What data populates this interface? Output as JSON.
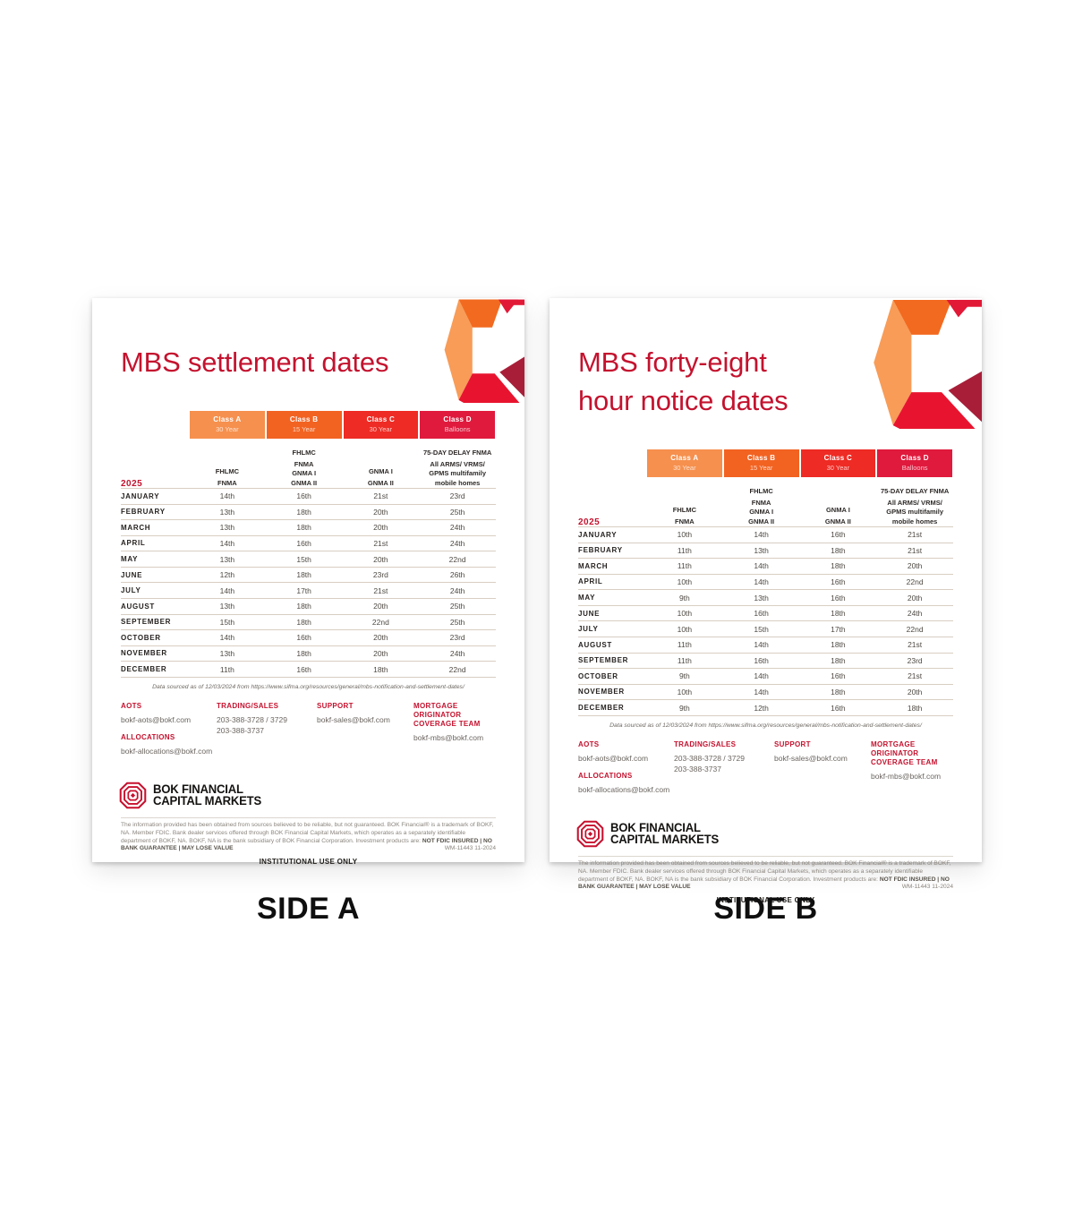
{
  "labels": [
    "SIDE A",
    "SIDE B"
  ],
  "colors": {
    "title_red": "#C4122E",
    "rule_red": "#B5122C",
    "class_a": "#F6904E",
    "class_b": "#F26322",
    "class_c": "#EE2B24",
    "class_d": "#E01A3D",
    "ribbon_light_orange": "#F89C58",
    "ribbon_dark_orange": "#F26A1F",
    "ribbon_red": "#E8142F",
    "ribbon_dark_red": "#A81E38",
    "logo_red": "#C8102E"
  },
  "pages": [
    {
      "id": "side-a",
      "title_lines": [
        "MBS settlement dates"
      ],
      "year": "2025",
      "columns": [
        {
          "label": "Class A",
          "sublabel": "30 Year",
          "color": "#F6904E",
          "entities": [
            "FHLMC",
            "FNMA"
          ]
        },
        {
          "label": "Class B",
          "sublabel": "15 Year",
          "color": "#F26322",
          "entities": [
            "FHLMC",
            "FNMA",
            "GNMA I",
            "GNMA II"
          ]
        },
        {
          "label": "Class C",
          "sublabel": "30 Year",
          "color": "#EE2B24",
          "entities": [
            "GNMA I",
            "GNMA II"
          ]
        },
        {
          "label": "Class D",
          "sublabel": "Balloons",
          "color": "#E01A3D",
          "entities": [
            "75-DAY DELAY FNMA",
            "All ARMS/ VRMS/",
            "GPMS multifamily",
            "mobile homes"
          ]
        }
      ],
      "rows": [
        {
          "month": "JANUARY",
          "dates": [
            "14th",
            "16th",
            "21st",
            "23rd"
          ]
        },
        {
          "month": "FEBRUARY",
          "dates": [
            "13th",
            "18th",
            "20th",
            "25th"
          ]
        },
        {
          "month": "MARCH",
          "dates": [
            "13th",
            "18th",
            "20th",
            "24th"
          ]
        },
        {
          "month": "APRIL",
          "dates": [
            "14th",
            "16th",
            "21st",
            "24th"
          ]
        },
        {
          "month": "MAY",
          "dates": [
            "13th",
            "15th",
            "20th",
            "22nd"
          ]
        },
        {
          "month": "JUNE",
          "dates": [
            "12th",
            "18th",
            "23rd",
            "26th"
          ]
        },
        {
          "month": "JULY",
          "dates": [
            "14th",
            "17th",
            "21st",
            "24th"
          ]
        },
        {
          "month": "AUGUST",
          "dates": [
            "13th",
            "18th",
            "20th",
            "25th"
          ]
        },
        {
          "month": "SEPTEMBER",
          "dates": [
            "15th",
            "18th",
            "22nd",
            "25th"
          ]
        },
        {
          "month": "OCTOBER",
          "dates": [
            "14th",
            "16th",
            "20th",
            "23rd"
          ]
        },
        {
          "month": "NOVEMBER",
          "dates": [
            "13th",
            "18th",
            "20th",
            "24th"
          ]
        },
        {
          "month": "DECEMBER",
          "dates": [
            "11th",
            "16th",
            "18th",
            "22nd"
          ]
        }
      ],
      "source_note": "Data sourced as of 12/03/2024 from https://www.sifma.org/resources/general/mbs-notification-and-settlement-dates/",
      "contacts": [
        [
          {
            "heading": "AOTS",
            "lines": [
              "bokf-aots@bokf.com"
            ]
          },
          {
            "heading": "ALLOCATIONS",
            "lines": [
              "bokf-allocations@bokf.com"
            ]
          }
        ],
        [
          {
            "heading": "TRADING/SALES",
            "lines": [
              "203-388-3728 / 3729",
              "203-388-3737"
            ]
          }
        ],
        [
          {
            "heading": "SUPPORT",
            "lines": [
              "bokf-sales@bokf.com"
            ]
          }
        ],
        [
          {
            "heading": "MORTGAGE ORIGINATOR COVERAGE TEAM",
            "lines": [
              "bokf-mbs@bokf.com"
            ]
          }
        ]
      ],
      "logo": {
        "line1": "BOK FINANCIAL",
        "line2": "CAPITAL MARKETS"
      },
      "disclaimer": {
        "text": "The information provided has been obtained from sources believed to be reliable, but not guaranteed. BOK Financial® is a trademark of BOKF, NA. Member FDIC. Bank dealer services offered through BOK Financial Capital Markets, which operates as a separately identifiable department of BOKF, NA. BOKF, NA is the bank subsidiary of BOK Financial Corporation. Investment products are: ",
        "bold": "NOT FDIC INSURED | NO BANK GUARANTEE | MAY LOSE VALUE",
        "code": "WM-11443 11-2024"
      },
      "institutional": "INSTITUTIONAL USE ONLY"
    },
    {
      "id": "side-b",
      "title_lines": [
        "MBS forty-eight",
        "hour notice dates"
      ],
      "year": "2025",
      "columns": [
        {
          "label": "Class A",
          "sublabel": "30 Year",
          "color": "#F6904E",
          "entities": [
            "FHLMC",
            "FNMA"
          ]
        },
        {
          "label": "Class B",
          "sublabel": "15 Year",
          "color": "#F26322",
          "entities": [
            "FHLMC",
            "FNMA",
            "GNMA I",
            "GNMA II"
          ]
        },
        {
          "label": "Class C",
          "sublabel": "30 Year",
          "color": "#EE2B24",
          "entities": [
            "GNMA I",
            "GNMA II"
          ]
        },
        {
          "label": "Class D",
          "sublabel": "Balloons",
          "color": "#E01A3D",
          "entities": [
            "75-DAY DELAY FNMA",
            "All ARMS/ VRMS/",
            "GPMS multifamily",
            "mobile homes"
          ]
        }
      ],
      "rows": [
        {
          "month": "JANUARY",
          "dates": [
            "10th",
            "14th",
            "16th",
            "21st"
          ]
        },
        {
          "month": "FEBRUARY",
          "dates": [
            "11th",
            "13th",
            "18th",
            "21st"
          ]
        },
        {
          "month": "MARCH",
          "dates": [
            "11th",
            "14th",
            "18th",
            "20th"
          ]
        },
        {
          "month": "APRIL",
          "dates": [
            "10th",
            "14th",
            "16th",
            "22nd"
          ]
        },
        {
          "month": "MAY",
          "dates": [
            "9th",
            "13th",
            "16th",
            "20th"
          ]
        },
        {
          "month": "JUNE",
          "dates": [
            "10th",
            "16th",
            "18th",
            "24th"
          ]
        },
        {
          "month": "JULY",
          "dates": [
            "10th",
            "15th",
            "17th",
            "22nd"
          ]
        },
        {
          "month": "AUGUST",
          "dates": [
            "11th",
            "14th",
            "18th",
            "21st"
          ]
        },
        {
          "month": "SEPTEMBER",
          "dates": [
            "11th",
            "16th",
            "18th",
            "23rd"
          ]
        },
        {
          "month": "OCTOBER",
          "dates": [
            "9th",
            "14th",
            "16th",
            "21st"
          ]
        },
        {
          "month": "NOVEMBER",
          "dates": [
            "10th",
            "14th",
            "18th",
            "20th"
          ]
        },
        {
          "month": "DECEMBER",
          "dates": [
            "9th",
            "12th",
            "16th",
            "18th"
          ]
        }
      ],
      "source_note": "Data sourced as of 12/03/2024 from https://www.sifma.org/resources/general/mbs-notification-and-settlement-dates/",
      "contacts": [
        [
          {
            "heading": "AOTS",
            "lines": [
              "bokf-aots@bokf.com"
            ]
          },
          {
            "heading": "ALLOCATIONS",
            "lines": [
              "bokf-allocations@bokf.com"
            ]
          }
        ],
        [
          {
            "heading": "TRADING/SALES",
            "lines": [
              "203-388-3728 / 3729",
              "203-388-3737"
            ]
          }
        ],
        [
          {
            "heading": "SUPPORT",
            "lines": [
              "bokf-sales@bokf.com"
            ]
          }
        ],
        [
          {
            "heading": "MORTGAGE ORIGINATOR COVERAGE TEAM",
            "lines": [
              "bokf-mbs@bokf.com"
            ]
          }
        ]
      ],
      "logo": {
        "line1": "BOK FINANCIAL",
        "line2": "CAPITAL MARKETS"
      },
      "disclaimer": {
        "text": "The information provided has been obtained from sources believed to be reliable, but not guaranteed. BOK Financial® is a trademark of BOKF, NA. Member FDIC. Bank dealer services offered through BOK Financial Capital Markets, which operates as a separately identifiable department of BOKF, NA. BOKF, NA is the bank subsidiary of BOK Financial Corporation. Investment products are: ",
        "bold": "NOT FDIC INSURED | NO BANK GUARANTEE | MAY LOSE VALUE",
        "code": "WM-11443 11-2024"
      },
      "institutional": "INSTITUTIONAL USE ONLY"
    }
  ]
}
